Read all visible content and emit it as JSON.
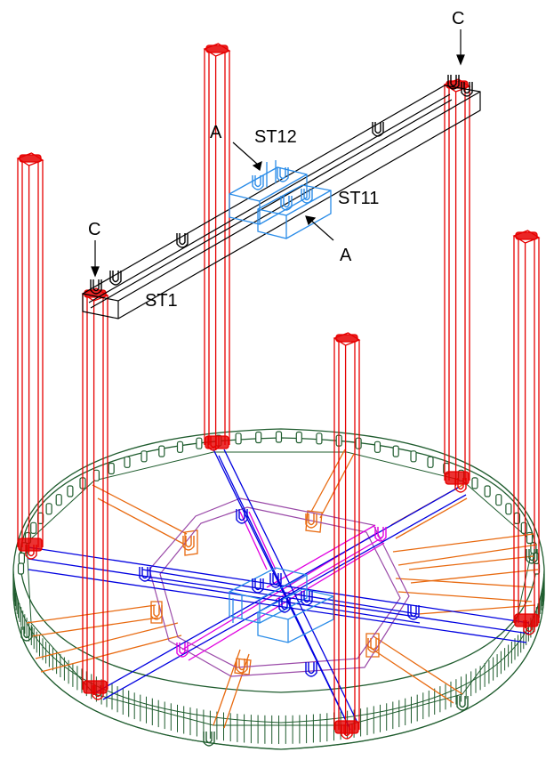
{
  "labels": {
    "c_right": "C",
    "c_left": "C",
    "a_top": "A",
    "a_right": "A",
    "st12": "ST12",
    "st11": "ST11",
    "st1": "ST1"
  },
  "colors": {
    "ring": "#1f5c2e",
    "column": "#e60000",
    "beam_blue": "#0000e0",
    "beam_magenta": "#e000e0",
    "beam_orange": "#e86a10",
    "violet": "#9a4aa8",
    "box_blue": "#2a8ce8",
    "beam_black": "#000000"
  }
}
